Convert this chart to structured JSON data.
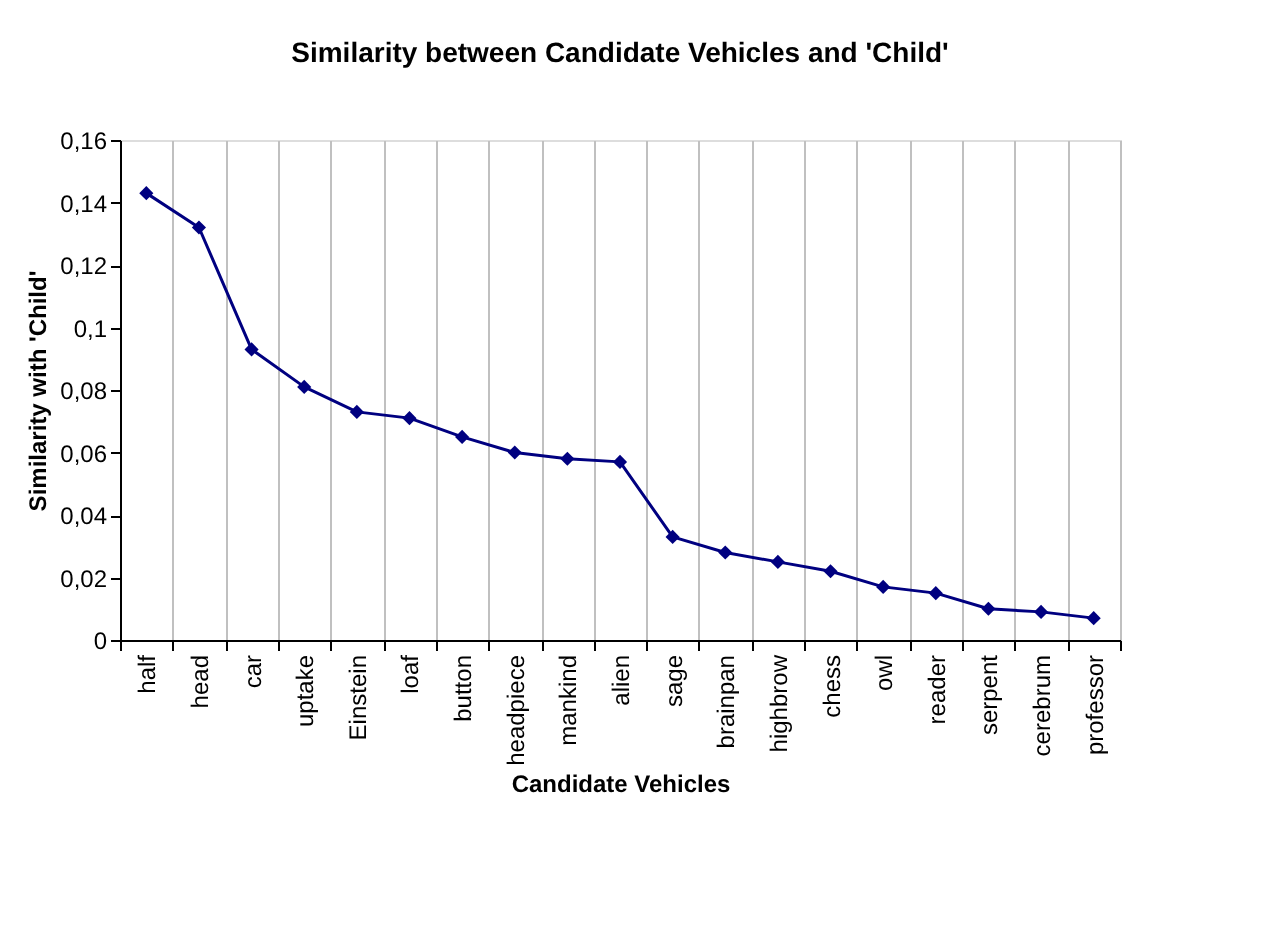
{
  "chart_data": {
    "type": "line",
    "title": "Similarity between Candidate Vehicles and 'Child'",
    "xlabel": "Candidate Vehicles",
    "ylabel": "Similarity with 'Child'",
    "categories": [
      "half",
      "head",
      "car",
      "uptake",
      "Einstein",
      "loaf",
      "button",
      "headpiece",
      "mankind",
      "alien",
      "sage",
      "brainpan",
      "highbrow",
      "chess",
      "owl",
      "reader",
      "serpent",
      "cerebrum",
      "professor"
    ],
    "series": [
      {
        "color": "#000080",
        "values": [
          0.143,
          0.132,
          0.093,
          0.081,
          0.073,
          0.071,
          0.065,
          0.06,
          0.058,
          0.057,
          0.033,
          0.028,
          0.025,
          0.022,
          0.017,
          0.015,
          0.01,
          0.009,
          0.007
        ]
      }
    ],
    "ylim": [
      0,
      0.16
    ],
    "yticks": [
      0,
      {
        "value": 0.02,
        "label": "0,02"
      },
      {
        "value": 0.04,
        "label": "0,04"
      },
      {
        "value": 0.06,
        "label": "0,06"
      },
      {
        "value": 0.08,
        "label": "0,08"
      },
      {
        "value": 0.1,
        "label": "0,1"
      },
      {
        "value": 0.12,
        "label": "0,12"
      },
      {
        "value": 0.14,
        "label": "0,14"
      },
      {
        "value": 0.16,
        "label": "0,16"
      }
    ],
    "grid": "x",
    "marker": "diamond",
    "line_style": "solid"
  }
}
